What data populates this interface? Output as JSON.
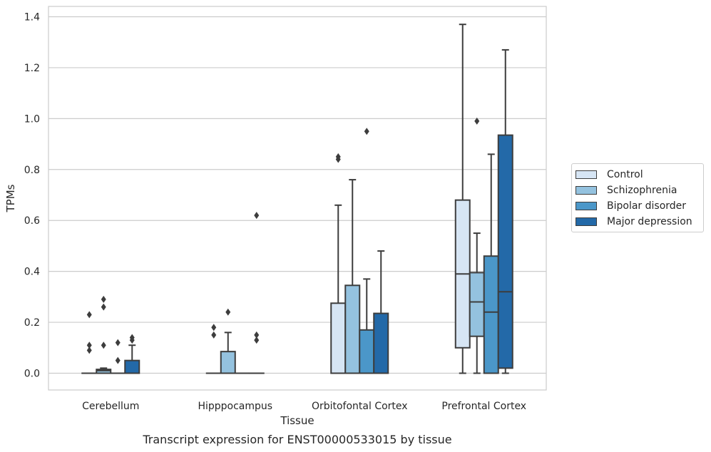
{
  "chart_data": {
    "type": "box",
    "caption": "Transcript expression for ENST00000533015 by tissue",
    "xlabel": "Tissue",
    "ylabel": "TPMs",
    "ylim": [
      -0.065,
      1.44
    ],
    "yticks": [
      "0.0",
      "0.2",
      "0.4",
      "0.6",
      "0.8",
      "1.0",
      "1.2",
      "1.4"
    ],
    "grid": "horizontal",
    "legend_position": "right",
    "categories": [
      "Cerebellum",
      "Hipppocampus",
      "Orbitofontal Cortex",
      "Prefrontal Cortex"
    ],
    "series": [
      {
        "name": "Control",
        "color": "#d6e5f4",
        "boxes": [
          {
            "whislo": 0,
            "q1": 0,
            "med": 0,
            "q3": 0,
            "whishi": 0,
            "fliers": [
              0.23,
              0.11,
              0.09
            ]
          },
          {
            "whislo": 0,
            "q1": 0,
            "med": 0,
            "q3": 0,
            "whishi": 0,
            "fliers": [
              0.18,
              0.15
            ]
          },
          {
            "whislo": 0,
            "q1": 0,
            "med": 0,
            "q3": 0.275,
            "whishi": 0.66,
            "fliers": [
              0.85,
              0.84
            ]
          },
          {
            "whislo": 0,
            "q1": 0.1,
            "med": 0.39,
            "q3": 0.68,
            "whishi": 1.37,
            "fliers": []
          }
        ]
      },
      {
        "name": "Schizophrenia",
        "color": "#94c2df",
        "boxes": [
          {
            "whislo": 0,
            "q1": 0,
            "med": 0.01,
            "q3": 0.015,
            "whishi": 0.02,
            "fliers": [
              0.29,
              0.26,
              0.11
            ]
          },
          {
            "whislo": 0,
            "q1": 0,
            "med": 0,
            "q3": 0.085,
            "whishi": 0.16,
            "fliers": [
              0.24
            ]
          },
          {
            "whislo": 0,
            "q1": 0,
            "med": 0,
            "q3": 0.345,
            "whishi": 0.76,
            "fliers": []
          },
          {
            "whislo": 0,
            "q1": 0.145,
            "med": 0.28,
            "q3": 0.395,
            "whishi": 0.55,
            "fliers": [
              0.99
            ]
          }
        ]
      },
      {
        "name": "Bipolar disorder",
        "color": "#4b97c9",
        "boxes": [
          {
            "whislo": 0,
            "q1": 0,
            "med": 0,
            "q3": 0,
            "whishi": 0,
            "fliers": [
              0.12,
              0.05
            ]
          },
          {
            "whislo": 0,
            "q1": 0,
            "med": 0,
            "q3": 0,
            "whishi": 0,
            "fliers": []
          },
          {
            "whislo": 0,
            "q1": 0,
            "med": 0,
            "q3": 0.17,
            "whishi": 0.37,
            "fliers": [
              0.95
            ]
          },
          {
            "whislo": 0,
            "q1": 0,
            "med": 0.24,
            "q3": 0.46,
            "whishi": 0.86,
            "fliers": []
          }
        ]
      },
      {
        "name": "Major depression",
        "color": "#2369a8",
        "boxes": [
          {
            "whislo": 0,
            "q1": 0,
            "med": 0,
            "q3": 0.05,
            "whishi": 0.11,
            "fliers": [
              0.14,
              0.13
            ]
          },
          {
            "whislo": 0,
            "q1": 0,
            "med": 0,
            "q3": 0,
            "whishi": 0,
            "fliers": [
              0.62,
              0.15,
              0.13
            ]
          },
          {
            "whislo": 0,
            "q1": 0,
            "med": 0,
            "q3": 0.235,
            "whishi": 0.48,
            "fliers": []
          },
          {
            "whislo": 0,
            "q1": 0.02,
            "med": 0.32,
            "q3": 0.935,
            "whishi": 1.27,
            "fliers": []
          }
        ]
      }
    ]
  }
}
